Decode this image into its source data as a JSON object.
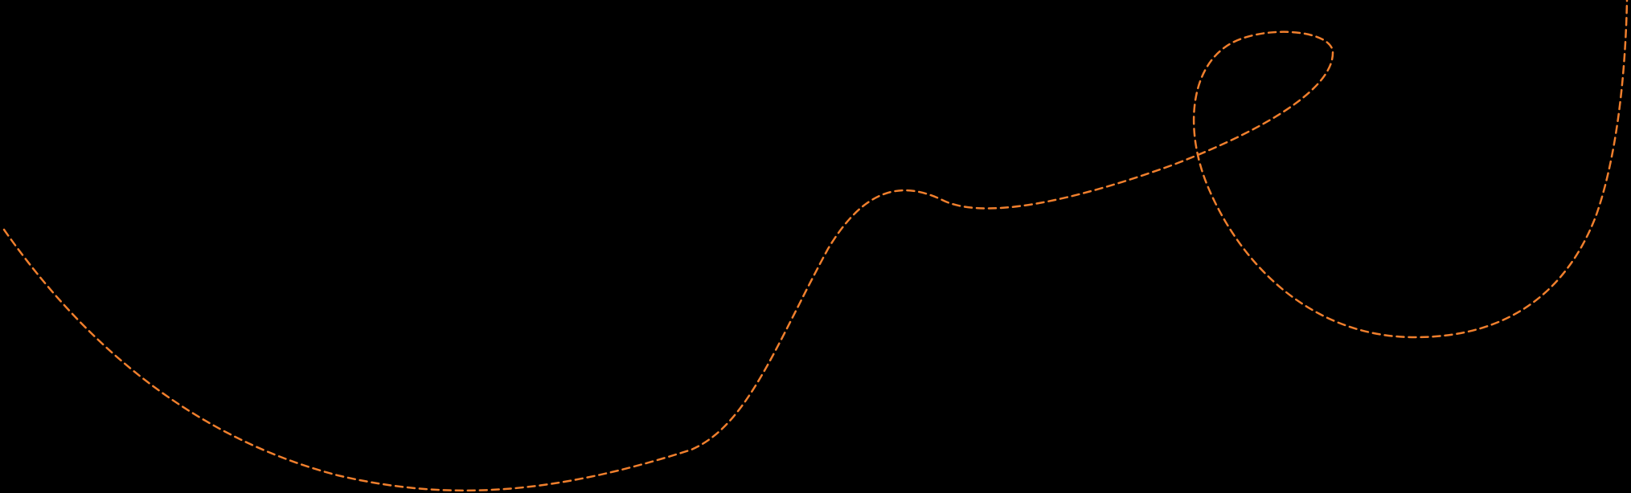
{
  "canvas": {
    "background": "#000000"
  },
  "decoration": {
    "stroke_color": "#F07F2D",
    "line_style": "dashed"
  }
}
